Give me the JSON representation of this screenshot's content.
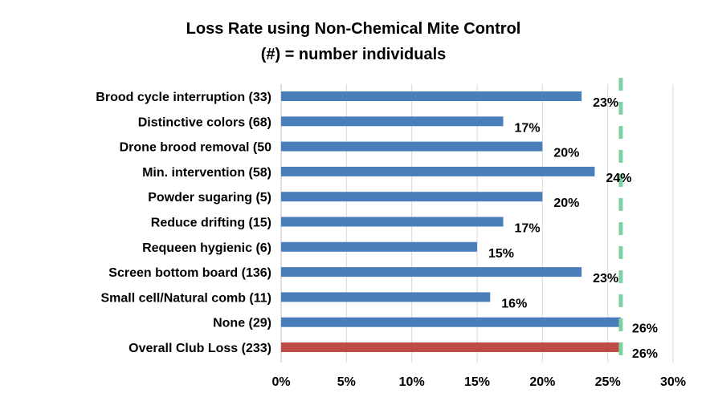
{
  "chart_data": {
    "type": "bar",
    "orientation": "horizontal",
    "title": "Loss Rate using Non-Chemical Mite Control",
    "subtitle": "(#) = number individuals",
    "categories": [
      "Brood cycle interruption (33)",
      "Distinctive colors (68)",
      "Drone brood removal (50",
      "Min. intervention (58)",
      "Powder sugaring (5)",
      "Reduce drifting (15)",
      "Requeen hygienic (6)",
      "Screen bottom board (136)",
      "Small cell/Natural comb (11)",
      "None (29)",
      "Overall Club Loss (233)"
    ],
    "values": [
      0.23,
      0.17,
      0.2,
      0.24,
      0.2,
      0.17,
      0.15,
      0.23,
      0.16,
      0.26,
      0.26
    ],
    "data_labels": [
      "23%",
      "17%",
      "20%",
      "24%",
      "20%",
      "17%",
      "15%",
      "23%",
      "16%",
      "26%",
      "26%"
    ],
    "bar_colors": [
      "#4a7ebb",
      "#4a7ebb",
      "#4a7ebb",
      "#4a7ebb",
      "#4a7ebb",
      "#4a7ebb",
      "#4a7ebb",
      "#4a7ebb",
      "#4a7ebb",
      "#4a7ebb",
      "#be4b48"
    ],
    "xlim": [
      0,
      0.3
    ],
    "x_ticks": [
      0,
      0.05,
      0.1,
      0.15,
      0.2,
      0.25,
      0.3
    ],
    "x_tick_labels": [
      "0%",
      "5%",
      "10%",
      "15%",
      "20%",
      "25%",
      "30%"
    ],
    "reference_line": {
      "value": 0.26,
      "style": "dashed",
      "color": "#7dd3a0"
    },
    "grid": "vertical",
    "gridline_color": "#d9d9d9",
    "legend": "none"
  }
}
